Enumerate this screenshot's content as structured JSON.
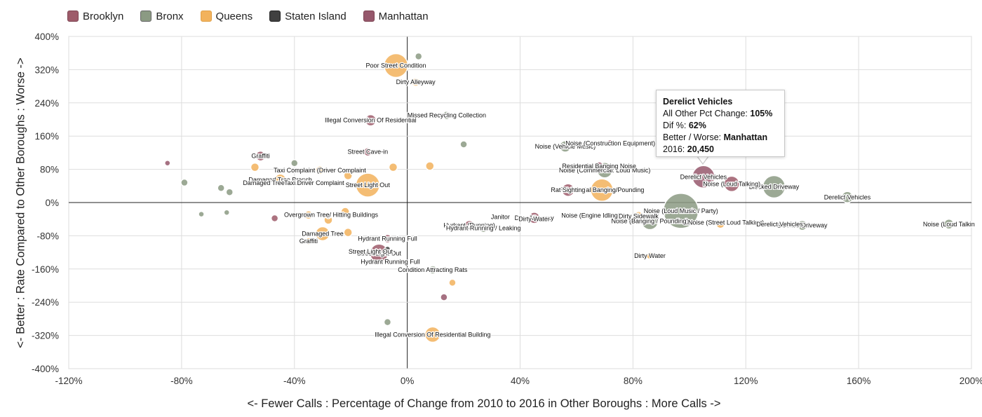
{
  "chart_data": {
    "type": "scatter",
    "xlabel": "<- Fewer Calls : Percentage of Change from 2010 to 2016 in Other Boroughs : More Calls ->",
    "ylabel": "<- Better : Rate Compared to Other Boroughs : Worse ->",
    "xlim": [
      -120,
      200
    ],
    "ylim": [
      -400,
      400
    ],
    "x_ticks": [
      "-120%",
      "-80%",
      "-40%",
      "0%",
      "40%",
      "80%",
      "120%",
      "160%",
      "200%"
    ],
    "y_ticks": [
      "400%",
      "320%",
      "240%",
      "160%",
      "80%",
      "0%",
      "-80%",
      "-160%",
      "-240%",
      "-320%",
      "-400%"
    ],
    "grid": true,
    "legend_position": "top-left",
    "series": [
      {
        "name": "Brooklyn",
        "color": "#9e5b6a",
        "points": [
          {
            "x": -52,
            "y": 112,
            "size": 7,
            "label": "Graffiti"
          },
          {
            "x": -14,
            "y": 122,
            "size": 6,
            "label": "Street Cave-in"
          },
          {
            "x": -13,
            "y": 198,
            "size": 8,
            "label": "Illegal Conversion Of Residential"
          },
          {
            "x": 45,
            "y": -37,
            "size": 8,
            "label": "Dirty Alleyway"
          },
          {
            "x": 57,
            "y": 30,
            "size": 9,
            "label": "Rat Sighting"
          },
          {
            "x": 115,
            "y": 45,
            "size": 11,
            "label": "Noise (Loud Talking)"
          },
          {
            "x": -10,
            "y": -122,
            "size": 13,
            "label": "Street Light Out"
          },
          {
            "x": 22,
            "y": -55,
            "size": 7,
            "label": "Hydrant (Running)"
          },
          {
            "x": -47,
            "y": -38,
            "size": 5,
            "label": ""
          },
          {
            "x": -7,
            "y": -87,
            "size": 6,
            "label": "Hydrant Running Full"
          }
        ]
      },
      {
        "name": "Bronx",
        "color": "#8b9a83",
        "points": [
          {
            "x": 4,
            "y": 352,
            "size": 5,
            "label": ""
          },
          {
            "x": 20,
            "y": 140,
            "size": 5,
            "label": ""
          },
          {
            "x": -40,
            "y": 95,
            "size": 5,
            "label": ""
          },
          {
            "x": -79,
            "y": 48,
            "size": 5,
            "label": ""
          },
          {
            "x": -66,
            "y": 35,
            "size": 5,
            "label": ""
          },
          {
            "x": -63,
            "y": 25,
            "size": 5,
            "label": ""
          },
          {
            "x": -73,
            "y": -28,
            "size": 4,
            "label": ""
          },
          {
            "x": -64,
            "y": -24,
            "size": 4,
            "label": ""
          },
          {
            "x": 130,
            "y": 38,
            "size": 16,
            "label": "Blocked Driveway"
          },
          {
            "x": 156,
            "y": 13,
            "size": 8,
            "label": "Derelict Vehicles"
          },
          {
            "x": 97,
            "y": -20,
            "size": 25,
            "label": "Noise (Loud Music / Party)"
          },
          {
            "x": 86,
            "y": -45,
            "size": 12,
            "label": "Noise (Banging / Pounding)"
          },
          {
            "x": 70,
            "y": 78,
            "size": 11,
            "label": "Noise (Commercial: Loud Music)"
          },
          {
            "x": 56,
            "y": 135,
            "size": 8,
            "label": "Noise (Vehicle Music)"
          },
          {
            "x": 140,
            "y": -55,
            "size": 7,
            "label": "Blocked Driveway"
          },
          {
            "x": 192,
            "y": -52,
            "size": 7,
            "label": "Noise (Loud Talkin"
          },
          {
            "x": 27,
            "y": -62,
            "size": 6,
            "label": "Hydrant Running / Leaking"
          },
          {
            "x": 9,
            "y": -162,
            "size": 6,
            "label": "Condition Attracting Rats"
          },
          {
            "x": -7,
            "y": -288,
            "size": 5,
            "label": ""
          },
          {
            "x": 14,
            "y": 210,
            "size": 6,
            "label": "Missed Recycling Collection"
          }
        ]
      },
      {
        "name": "Queens",
        "color": "#f2b25c",
        "points": [
          {
            "x": -4,
            "y": 330,
            "size": 17,
            "label": "Poor Street Condition"
          },
          {
            "x": 3,
            "y": 290,
            "size": 6,
            "label": "Dirty Alleyway"
          },
          {
            "x": -14,
            "y": 42,
            "size": 17,
            "label": "Street Light Out"
          },
          {
            "x": 69,
            "y": 30,
            "size": 16,
            "label": "Residential Banging/Pounding"
          },
          {
            "x": 9,
            "y": -318,
            "size": 11,
            "label": "Illegal Conversion Of Residential Building"
          },
          {
            "x": -54,
            "y": 85,
            "size": 6,
            "label": ""
          },
          {
            "x": -45,
            "y": 55,
            "size": 8,
            "label": "Damaged Tree Branch"
          },
          {
            "x": -31,
            "y": 78,
            "size": 6,
            "label": "Taxi Complaint (Driver Complaint"
          },
          {
            "x": -5,
            "y": 85,
            "size": 6,
            "label": ""
          },
          {
            "x": 8,
            "y": 88,
            "size": 6,
            "label": ""
          },
          {
            "x": -21,
            "y": 65,
            "size": 6,
            "label": ""
          },
          {
            "x": -28,
            "y": -42,
            "size": 6,
            "label": ""
          },
          {
            "x": -22,
            "y": -22,
            "size": 6,
            "label": ""
          },
          {
            "x": -21,
            "y": -72,
            "size": 6,
            "label": ""
          },
          {
            "x": -35,
            "y": -30,
            "size": 6,
            "label": ""
          },
          {
            "x": -30,
            "y": -75,
            "size": 10,
            "label": "Damaged Tree"
          },
          {
            "x": -35,
            "y": -93,
            "size": 5,
            "label": "Graffiti"
          },
          {
            "x": 86,
            "y": -128,
            "size": 5,
            "label": "Dirty Water"
          },
          {
            "x": 16,
            "y": -193,
            "size": 5,
            "label": ""
          },
          {
            "x": 111,
            "y": -52,
            "size": 6,
            "label": ""
          },
          {
            "x": 82,
            "y": -30,
            "size": 5,
            "label": ""
          }
        ]
      },
      {
        "name": "Staten Island",
        "color": "#404040",
        "points": [
          {
            "x": -7,
            "y": -112,
            "size": 4,
            "label": ""
          },
          {
            "x": -28,
            "y": -32,
            "size": 4,
            "label": ""
          }
        ]
      },
      {
        "name": "Manhattan",
        "color": "#96586c",
        "points": [
          {
            "x": 105,
            "y": 62,
            "size": 16,
            "label": "Derelict Vehicles"
          },
          {
            "x": -85,
            "y": 95,
            "size": 4,
            "label": ""
          },
          {
            "x": 13,
            "y": -228,
            "size": 5,
            "label": ""
          },
          {
            "x": 72,
            "y": 143,
            "size": 5,
            "label": "Noise (Construction Equipment)"
          },
          {
            "x": 68,
            "y": 88,
            "size": 6,
            "label": "Residential Banging Noise"
          }
        ]
      }
    ],
    "annotations": [
      "Overgrown Tree/ Hitting Buildings",
      "Janitor",
      "Dirty Water",
      "Noise (Engine Idling)",
      "Dirty Sidewalk",
      "Noise (Street Loud Talking)",
      "Derelict Vehicles",
      "Hydrant Running Full",
      "Damaged Tree Branch",
      "Taxi Driver Complaint",
      "Street Light Out"
    ],
    "tooltip": {
      "title": "Derelict Vehicles",
      "line1_label": "All Other Pct Change:",
      "line1_value": "105%",
      "line2_label": "Dif %:",
      "line2_value": "62%",
      "line3_label": "Better / Worse:",
      "line3_value": "Manhattan",
      "line4_label": "2016:",
      "line4_value": "20,450"
    }
  }
}
